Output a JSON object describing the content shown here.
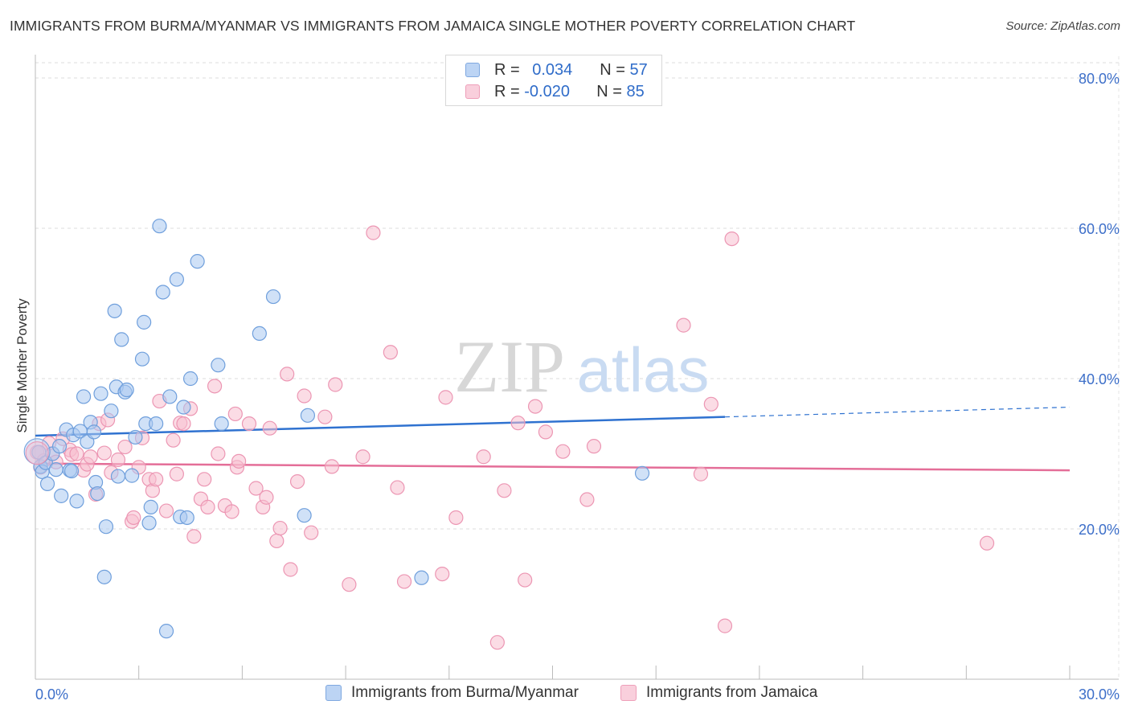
{
  "title": "IMMIGRANTS FROM BURMA/MYANMAR VS IMMIGRANTS FROM JAMAICA SINGLE MOTHER POVERTY CORRELATION CHART",
  "source": "Source: ZipAtlas.com",
  "watermark": {
    "zip": "ZIP",
    "atlas": "atlas"
  },
  "legend": {
    "burma": {
      "r_label": "R = ",
      "r_value": "0.034",
      "n_label": "N = ",
      "n_value": "57"
    },
    "jamaica": {
      "r_label": "R = ",
      "r_value": "-0.020",
      "n_label": "N = ",
      "n_value": "85"
    }
  },
  "bottom_legend": {
    "burma": "Immigrants from Burma/Myanmar",
    "jamaica": "Immigrants from Jamaica"
  },
  "colors": {
    "burma_fill": "#aac8f0",
    "burma_stroke": "#6f9fdc",
    "burma_line": "#2f72d0",
    "jamaica_fill": "#f7bfd0",
    "jamaica_stroke": "#ec96b3",
    "jamaica_line": "#e46e98",
    "axis_label": "#3d6fc9"
  },
  "chart_data": {
    "type": "scatter",
    "title": "IMMIGRANTS FROM BURMA/MYANMAR VS IMMIGRANTS FROM JAMAICA SINGLE MOTHER POVERTY CORRELATION CHART",
    "xlabel": "",
    "ylabel": "Single Mother Poverty",
    "xlim": [
      0,
      30
    ],
    "ylim": [
      0,
      80
    ],
    "x_ticks": [
      "0.0%",
      "30.0%"
    ],
    "y_ticks": [
      "20.0%",
      "40.0%",
      "60.0%",
      "80.0%"
    ],
    "y_tick_values": [
      20,
      40,
      60,
      80
    ],
    "grid": true,
    "series": [
      {
        "name": "Immigrants from Burma/Myanmar",
        "color": "#aac8f0",
        "trend": {
          "x": [
            0,
            20
          ],
          "y": [
            32.4,
            34.9
          ],
          "extend_to": 30,
          "extend_y": 36.2
        },
        "points": [
          [
            0.1,
            30.2
          ],
          [
            0.15,
            28.3
          ],
          [
            0.2,
            27.6
          ],
          [
            0.3,
            28.8
          ],
          [
            0.35,
            26.0
          ],
          [
            0.5,
            30.0
          ],
          [
            0.6,
            27.9
          ],
          [
            0.7,
            31.0
          ],
          [
            0.75,
            24.4
          ],
          [
            0.9,
            33.2
          ],
          [
            1.0,
            27.8
          ],
          [
            1.05,
            27.7
          ],
          [
            1.1,
            32.5
          ],
          [
            1.2,
            23.7
          ],
          [
            1.3,
            33.0
          ],
          [
            1.4,
            37.6
          ],
          [
            1.5,
            31.6
          ],
          [
            1.6,
            34.2
          ],
          [
            1.7,
            32.9
          ],
          [
            1.75,
            26.2
          ],
          [
            1.8,
            24.7
          ],
          [
            1.9,
            38.0
          ],
          [
            2.0,
            13.6
          ],
          [
            2.05,
            20.3
          ],
          [
            2.2,
            35.7
          ],
          [
            2.3,
            49.0
          ],
          [
            2.35,
            38.9
          ],
          [
            2.4,
            27.0
          ],
          [
            2.5,
            45.2
          ],
          [
            2.6,
            38.2
          ],
          [
            2.65,
            38.5
          ],
          [
            2.8,
            27.1
          ],
          [
            2.9,
            32.2
          ],
          [
            3.1,
            42.6
          ],
          [
            3.15,
            47.5
          ],
          [
            3.2,
            34.0
          ],
          [
            3.3,
            20.8
          ],
          [
            3.35,
            22.9
          ],
          [
            3.5,
            34.0
          ],
          [
            3.6,
            60.3
          ],
          [
            3.7,
            51.5
          ],
          [
            3.8,
            6.4
          ],
          [
            3.9,
            37.6
          ],
          [
            4.1,
            53.2
          ],
          [
            4.2,
            21.6
          ],
          [
            4.3,
            36.2
          ],
          [
            4.4,
            21.5
          ],
          [
            4.5,
            40.0
          ],
          [
            4.7,
            55.6
          ],
          [
            5.3,
            41.8
          ],
          [
            5.4,
            34.0
          ],
          [
            6.5,
            46.0
          ],
          [
            6.9,
            50.9
          ],
          [
            7.8,
            21.8
          ],
          [
            7.9,
            35.1
          ],
          [
            11.2,
            13.5
          ],
          [
            17.6,
            27.4
          ]
        ]
      },
      {
        "name": "Immigrants from Jamaica",
        "color": "#f7bfd0",
        "trend": {
          "x": [
            0,
            30
          ],
          "y": [
            28.7,
            27.8
          ]
        },
        "points": [
          [
            0.05,
            30.2
          ],
          [
            0.15,
            28.2
          ],
          [
            0.25,
            29.1
          ],
          [
            0.4,
            31.4
          ],
          [
            0.5,
            30.0
          ],
          [
            0.6,
            28.9
          ],
          [
            0.8,
            32.0
          ],
          [
            1.0,
            30.5
          ],
          [
            1.05,
            29.9
          ],
          [
            1.2,
            30.0
          ],
          [
            1.4,
            27.8
          ],
          [
            1.5,
            28.6
          ],
          [
            1.6,
            29.6
          ],
          [
            1.75,
            24.6
          ],
          [
            1.85,
            34.0
          ],
          [
            2.0,
            30.1
          ],
          [
            2.1,
            34.5
          ],
          [
            2.2,
            27.5
          ],
          [
            2.4,
            29.2
          ],
          [
            2.6,
            30.9
          ],
          [
            2.8,
            21.0
          ],
          [
            2.85,
            21.5
          ],
          [
            3.0,
            28.2
          ],
          [
            3.1,
            32.1
          ],
          [
            3.3,
            26.6
          ],
          [
            3.4,
            25.1
          ],
          [
            3.5,
            26.6
          ],
          [
            3.6,
            37.0
          ],
          [
            3.8,
            22.4
          ],
          [
            4.0,
            31.8
          ],
          [
            4.1,
            27.3
          ],
          [
            4.2,
            34.1
          ],
          [
            4.3,
            34.0
          ],
          [
            4.5,
            36.0
          ],
          [
            4.6,
            19.0
          ],
          [
            4.8,
            24.0
          ],
          [
            4.9,
            26.6
          ],
          [
            5.0,
            22.9
          ],
          [
            5.2,
            39.0
          ],
          [
            5.3,
            30.0
          ],
          [
            5.5,
            23.1
          ],
          [
            5.7,
            22.3
          ],
          [
            5.8,
            35.3
          ],
          [
            5.85,
            28.2
          ],
          [
            5.9,
            29.0
          ],
          [
            6.2,
            34.0
          ],
          [
            6.4,
            25.4
          ],
          [
            6.6,
            22.9
          ],
          [
            6.7,
            24.2
          ],
          [
            6.8,
            33.4
          ],
          [
            7.0,
            18.4
          ],
          [
            7.1,
            20.1
          ],
          [
            7.3,
            40.6
          ],
          [
            7.4,
            14.6
          ],
          [
            7.6,
            26.3
          ],
          [
            7.8,
            37.7
          ],
          [
            8.0,
            19.5
          ],
          [
            8.4,
            34.9
          ],
          [
            8.6,
            28.3
          ],
          [
            8.7,
            39.2
          ],
          [
            9.1,
            12.6
          ],
          [
            9.5,
            29.6
          ],
          [
            9.8,
            59.4
          ],
          [
            10.3,
            43.5
          ],
          [
            10.5,
            25.5
          ],
          [
            10.7,
            13.0
          ],
          [
            11.8,
            14.0
          ],
          [
            11.9,
            37.5
          ],
          [
            12.2,
            21.5
          ],
          [
            13.0,
            29.6
          ],
          [
            13.4,
            4.9
          ],
          [
            13.6,
            25.1
          ],
          [
            14.0,
            34.1
          ],
          [
            14.2,
            13.2
          ],
          [
            14.5,
            36.3
          ],
          [
            14.8,
            32.9
          ],
          [
            15.3,
            30.3
          ],
          [
            16.0,
            23.9
          ],
          [
            16.2,
            31.0
          ],
          [
            18.8,
            47.1
          ],
          [
            19.3,
            27.3
          ],
          [
            19.6,
            36.6
          ],
          [
            20.0,
            7.1
          ],
          [
            20.2,
            58.6
          ],
          [
            27.6,
            18.1
          ]
        ]
      }
    ]
  }
}
